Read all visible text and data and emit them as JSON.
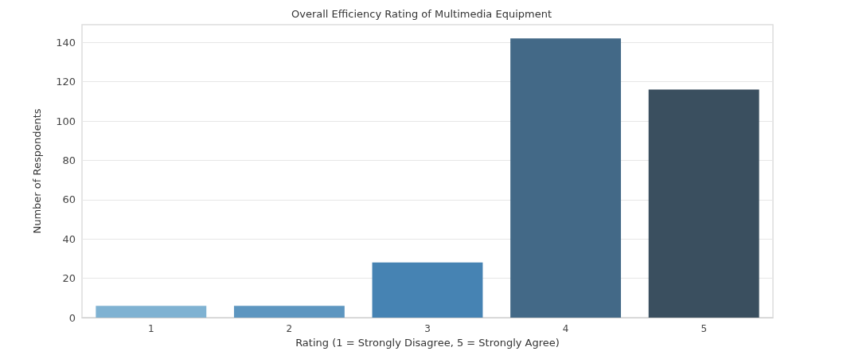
{
  "chart_data": {
    "type": "bar",
    "title": "Overall Efficiency Rating of Multimedia Equipment",
    "xlabel": "Rating (1 = Strongly Disagree, 5 = Strongly Agree)",
    "ylabel": "Number of Respondents",
    "categories": [
      "1",
      "2",
      "3",
      "4",
      "5"
    ],
    "values": [
      6,
      6,
      28,
      142,
      116
    ],
    "colors": [
      "#7fb2d2",
      "#5d96c0",
      "#4683b3",
      "#436987",
      "#3a4f5f"
    ],
    "ylim": [
      0,
      149
    ],
    "yticks": [
      0,
      20,
      40,
      60,
      80,
      100,
      120,
      140
    ],
    "grid": "y"
  }
}
